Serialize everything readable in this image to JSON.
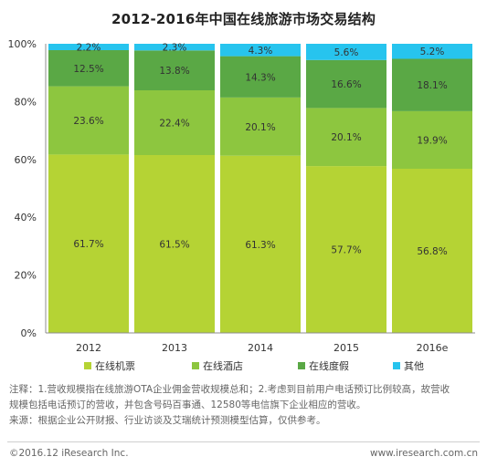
{
  "chart_data": {
    "type": "bar",
    "stacked": true,
    "title": "2012-2016年中国在线旅游市场交易结构",
    "xlabel": "",
    "ylabel": "",
    "ylim": [
      0,
      100
    ],
    "yticks": [
      "0%",
      "20%",
      "40%",
      "60%",
      "80%",
      "100%"
    ],
    "categories": [
      "2012",
      "2013",
      "2014",
      "2015",
      "2016e"
    ],
    "series": [
      {
        "name": "在线机票",
        "color": "#b5d334",
        "values": [
          61.7,
          61.5,
          61.3,
          57.7,
          56.8
        ],
        "labels": [
          "61.7%",
          "61.5%",
          "61.3%",
          "57.7%",
          "56.8%"
        ]
      },
      {
        "name": "在线酒店",
        "color": "#8dc63f",
        "values": [
          23.6,
          22.4,
          20.1,
          20.1,
          19.9
        ],
        "labels": [
          "23.6%",
          "22.4%",
          "20.1%",
          "20.1%",
          "19.9%"
        ]
      },
      {
        "name": "在线度假",
        "color": "#5aa845",
        "values": [
          12.5,
          13.8,
          14.3,
          16.6,
          18.1
        ],
        "labels": [
          "12.5%",
          "13.8%",
          "14.3%",
          "16.6%",
          "18.1%"
        ]
      },
      {
        "name": "其他",
        "color": "#27c4ee",
        "values": [
          2.2,
          2.3,
          4.3,
          5.6,
          5.2
        ],
        "labels": [
          "2.2%",
          "2.3%",
          "4.3%",
          "5.6%",
          "5.2%"
        ]
      }
    ],
    "grid": false,
    "legend_position": "bottom"
  },
  "notes": {
    "line1": "注释：1.营收规模指在线旅游OTA企业佣金营收规模总和；2.考虑到目前用户电话预订比例较高，故营收",
    "line2": "规模包括电话预订的营收，并包含号码百事通、12580等电信旗下企业相应的营收。",
    "line3": "来源：根据企业公开财报、行业访谈及艾瑞统计预测模型估算，仅供参考。"
  },
  "footer": {
    "copyright": "©2016.12 iResearch Inc.",
    "website": "www.iresearch.com.cn"
  }
}
